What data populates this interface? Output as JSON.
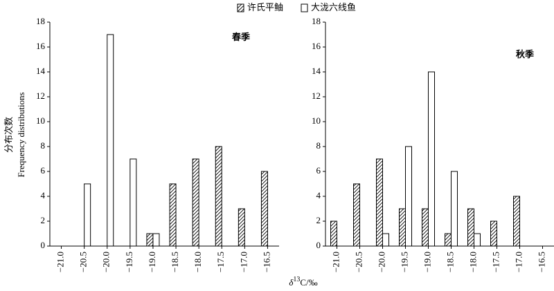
{
  "chart_data": [
    {
      "type": "bar",
      "title": "春季",
      "y_label": [
        "分布次数",
        "Frequency distributions"
      ],
      "x_label": {
        "symbol": "δ",
        "sup": "13",
        "rest": "C/‰"
      },
      "categories": [
        "−21.0",
        "−20.5",
        "−20.0",
        "−19.5",
        "−19.0",
        "−18.5",
        "−18.0",
        "−17.5",
        "−17.0",
        "−16.5"
      ],
      "series": [
        {
          "name": "许氏平鲉",
          "color": "#000000",
          "pattern": "hatch",
          "values": [
            0,
            0,
            0,
            0,
            1,
            5,
            7,
            8,
            3,
            6
          ]
        },
        {
          "name": "大泷六线鱼",
          "color": "#000000",
          "pattern": "open",
          "values": [
            0,
            5,
            17,
            7,
            1,
            0,
            0,
            0,
            0,
            0
          ]
        }
      ],
      "ylim": [
        0,
        18
      ],
      "yticks": [
        0,
        2,
        4,
        6,
        8,
        10,
        12,
        14,
        16,
        18
      ]
    },
    {
      "type": "bar",
      "title": "秋季",
      "categories": [
        "−21.0",
        "−20.5",
        "−20.0",
        "−19.5",
        "−19.0",
        "−18.5",
        "−18.0",
        "−17.5",
        "−17.0",
        "−16.5"
      ],
      "series": [
        {
          "color": "#000000",
          "pattern": "hatch",
          "values": [
            2,
            5,
            7,
            3,
            3,
            1,
            3,
            2,
            4,
            0
          ]
        },
        {
          "color": "#000000",
          "pattern": "open",
          "values": [
            0,
            0,
            1,
            8,
            14,
            6,
            1,
            0,
            0,
            0
          ]
        }
      ],
      "ylim": [
        0,
        18
      ],
      "yticks": [
        0,
        2,
        4,
        6,
        8,
        10,
        12,
        14,
        16,
        18
      ]
    }
  ]
}
